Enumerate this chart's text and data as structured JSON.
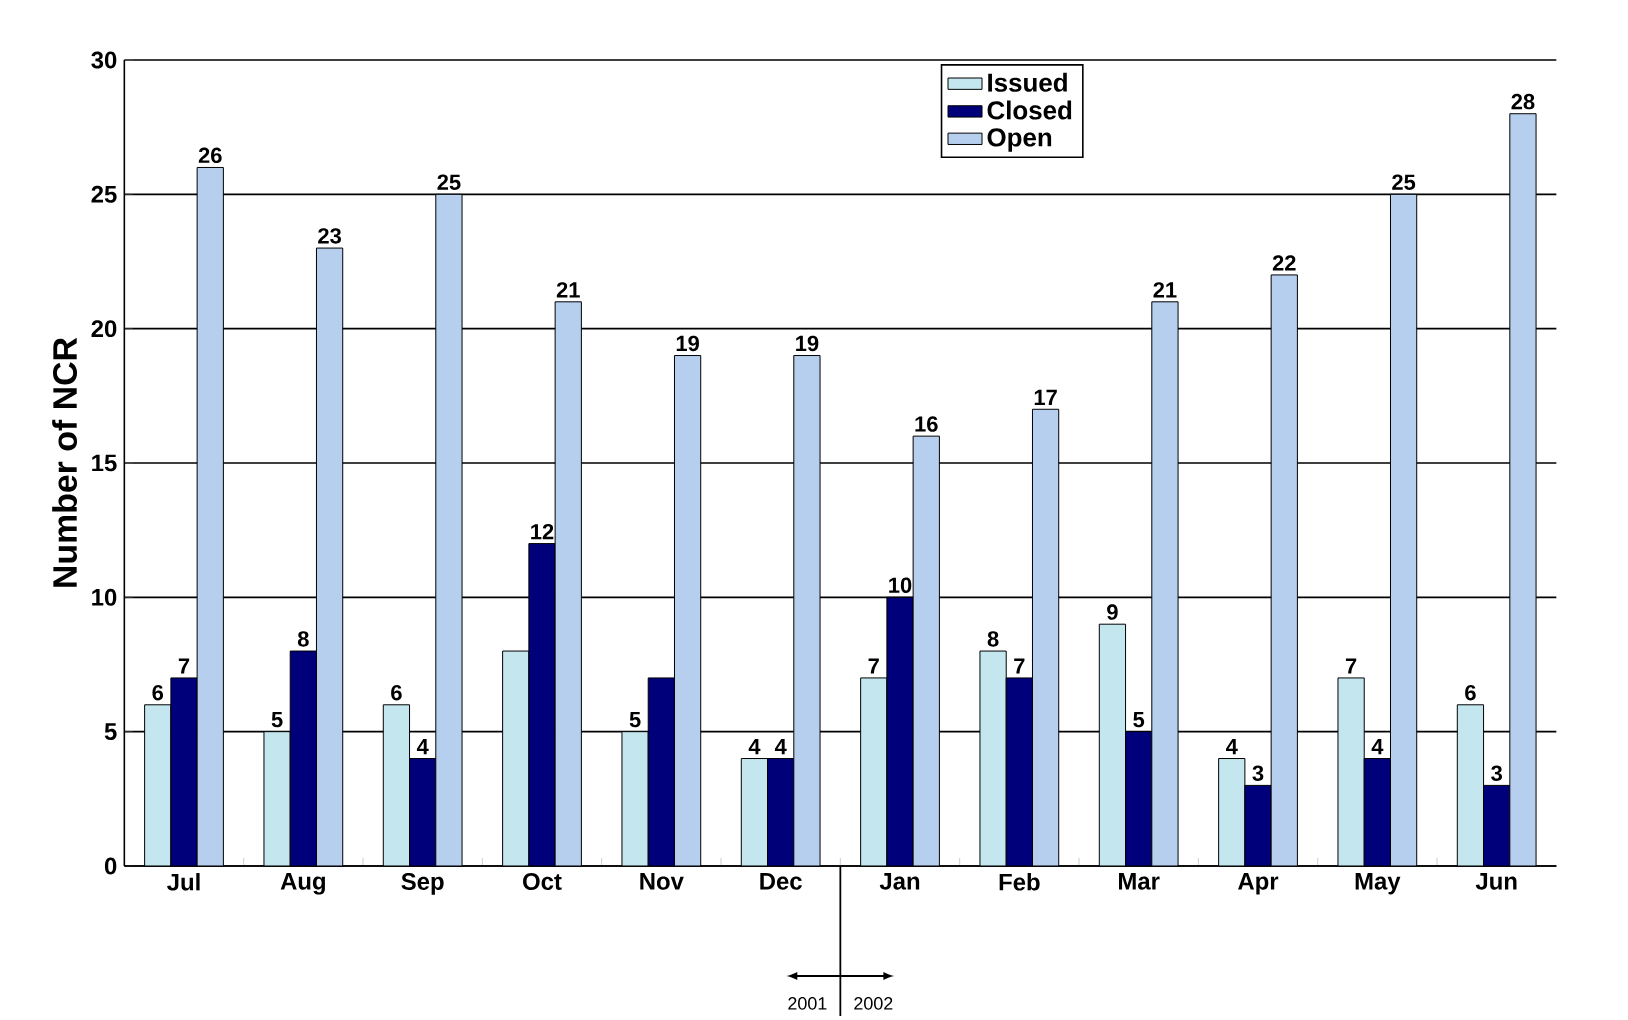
{
  "chart_data": {
    "type": "bar",
    "ylabel": "Number of NCR",
    "categories": [
      "Jul",
      "Aug",
      "Sep",
      "Oct",
      "Nov",
      "Dec",
      "Jan",
      "Feb",
      "Mar",
      "Apr",
      "May",
      "Jun"
    ],
    "series": [
      {
        "name": "Issued",
        "color": "#c4e6ef",
        "values": [
          6,
          5,
          6,
          8,
          5,
          4,
          7,
          8,
          9,
          4,
          7,
          6
        ],
        "value_labels": [
          "6",
          "5",
          "6",
          null,
          "5",
          "4",
          "7",
          "8",
          "9",
          "4",
          "7",
          "6"
        ]
      },
      {
        "name": "Closed",
        "color": "#00007a",
        "values": [
          7,
          8,
          4,
          12,
          7,
          4,
          10,
          7,
          5,
          3,
          4,
          3
        ],
        "value_labels": [
          "7",
          "8",
          "4",
          "12",
          null,
          "4",
          "10",
          "7",
          "5",
          "3",
          "4",
          "3"
        ]
      },
      {
        "name": "Open",
        "color": "#b7cfee",
        "values": [
          26,
          23,
          25,
          21,
          19,
          19,
          16,
          17,
          21,
          22,
          25,
          28
        ],
        "value_labels": [
          "26",
          "23",
          "25",
          "21",
          "19",
          "19",
          "16",
          "17",
          "21",
          "22",
          "25",
          "28"
        ]
      }
    ],
    "ylim": [
      0,
      30
    ],
    "yticks": [
      0,
      5,
      10,
      15,
      20,
      25,
      30
    ],
    "grid": "y",
    "legend": "top",
    "annotations": [
      "2001",
      "2002"
    ]
  }
}
